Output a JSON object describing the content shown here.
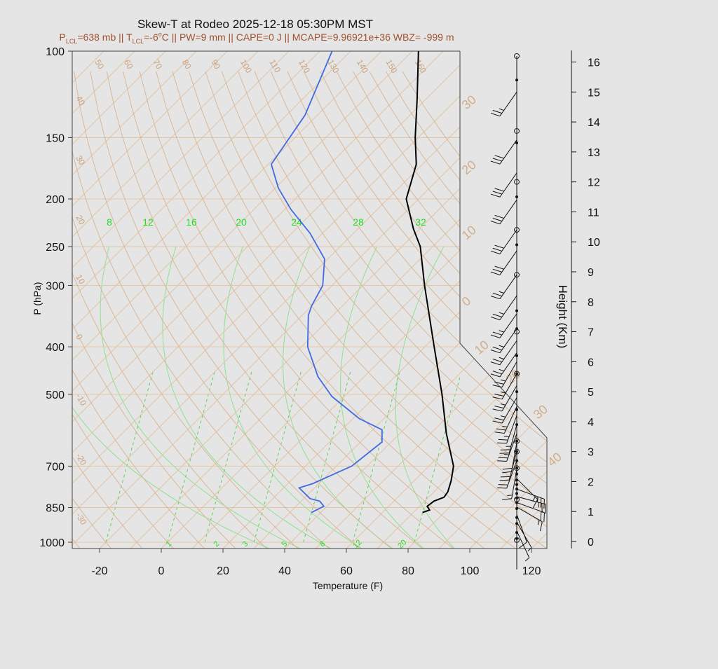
{
  "chart_data": {
    "type": "skew-t",
    "title": "Skew-T at Rodeo 2025-12-18 05:30PM MST",
    "subtitle": {
      "p_lcl_sym": "P",
      "p_lcl_sub": "LCL",
      "p_lcl_val": "=638 mb",
      "sep1": " || ",
      "t_lcl_sym": "T",
      "t_lcl_sub": "LCL",
      "t_lcl_val": "=-6",
      "deg": "o",
      "t_lcl_unit": "C",
      "rest": " || PW=9 mm || CAPE=0 J || MCAPE=9.96921e+36 WBZ= -999 m"
    },
    "xlabel": "Temperature (F)",
    "ylabel": "P (hPa)",
    "ylabel_right": "Height (Km)",
    "x_ticks": [
      "-20",
      "0",
      "20",
      "40",
      "60",
      "80",
      "100",
      "120"
    ],
    "x_tick_values": [
      -20,
      0,
      20,
      40,
      60,
      80,
      100,
      120
    ],
    "xlim": [
      -28,
      125
    ],
    "p_ticks": [
      "100",
      "150",
      "200",
      "250",
      "300",
      "400",
      "500",
      "700",
      "850",
      "1000"
    ],
    "p_tick_values": [
      100,
      150,
      200,
      250,
      300,
      400,
      500,
      700,
      850,
      1000
    ],
    "plim": [
      100,
      1030
    ],
    "isotherm_labels": [
      "50",
      "60",
      "70",
      "80",
      "90",
      "100",
      "110",
      "120",
      "130",
      "140",
      "150",
      "160"
    ],
    "isotherm_values": [
      50,
      60,
      70,
      80,
      90,
      100,
      110,
      120,
      130,
      140,
      150,
      160
    ],
    "isotherm_labels_left": [
      "40",
      "30",
      "20",
      "10",
      "0",
      "-10",
      "-20",
      "-30"
    ],
    "isotherm_values_left": [
      40,
      30,
      20,
      10,
      0,
      -10,
      -20,
      -30
    ],
    "wind_scale_labels": [
      "30",
      "20",
      "10",
      "0",
      "10",
      "20",
      "30",
      "40"
    ],
    "mixing_ratio_top_labels": [
      "8",
      "12",
      "16",
      "20",
      "24",
      "28",
      "32"
    ],
    "mixing_ratio_top_values": [
      8,
      12,
      16,
      20,
      24,
      28,
      32
    ],
    "mixing_ratio_bottom_labels": [
      "1",
      "2",
      "3",
      "5",
      "8",
      "12",
      "20"
    ],
    "mixing_ratio_bottom_values": [
      1,
      2,
      3,
      5,
      8,
      12,
      20
    ],
    "height_ticks": [
      "0",
      "1",
      "2",
      "3",
      "4",
      "5",
      "6",
      "7",
      "8",
      "9",
      "10",
      "11",
      "12",
      "13",
      "14",
      "15",
      "16"
    ],
    "height_values": [
      0,
      1,
      2,
      3,
      4,
      5,
      6,
      7,
      8,
      9,
      10,
      11,
      12,
      13,
      14,
      15,
      16
    ],
    "series": [
      {
        "name": "",
        "color": "#000000",
        "points": [
          {
            "p": 870,
            "t": 73
          },
          {
            "p": 860,
            "t": 74.5
          },
          {
            "p": 845,
            "t": 72.5
          },
          {
            "p": 825,
            "t": 73
          },
          {
            "p": 810,
            "t": 75
          },
          {
            "p": 790,
            "t": 74.5
          },
          {
            "p": 750,
            "t": 72
          },
          {
            "p": 700,
            "t": 68
          },
          {
            "p": 600,
            "t": 55
          },
          {
            "p": 500,
            "t": 41
          },
          {
            "p": 400,
            "t": 23
          },
          {
            "p": 300,
            "t": 0
          },
          {
            "p": 250,
            "t": -14
          },
          {
            "p": 230,
            "t": -22
          },
          {
            "p": 200,
            "t": -34
          },
          {
            "p": 170,
            "t": -42
          },
          {
            "p": 150,
            "t": -51
          },
          {
            "p": 125,
            "t": -63
          },
          {
            "p": 100,
            "t": -78
          }
        ]
      },
      {
        "name": "",
        "color": "#4169e1",
        "points": [
          {
            "p": 870,
            "t": 37
          },
          {
            "p": 845,
            "t": 39
          },
          {
            "p": 825,
            "t": 36
          },
          {
            "p": 815,
            "t": 32
          },
          {
            "p": 775,
            "t": 25
          },
          {
            "p": 760,
            "t": 28
          },
          {
            "p": 700,
            "t": 35
          },
          {
            "p": 625,
            "t": 37
          },
          {
            "p": 590,
            "t": 33
          },
          {
            "p": 560,
            "t": 22
          },
          {
            "p": 505,
            "t": 6
          },
          {
            "p": 460,
            "t": -5
          },
          {
            "p": 400,
            "t": -18
          },
          {
            "p": 345,
            "t": -28
          },
          {
            "p": 330,
            "t": -30
          },
          {
            "p": 300,
            "t": -33
          },
          {
            "p": 265,
            "t": -41
          },
          {
            "p": 235,
            "t": -54
          },
          {
            "p": 210,
            "t": -68
          },
          {
            "p": 190,
            "t": -79
          },
          {
            "p": 170,
            "t": -89
          },
          {
            "p": 135,
            "t": -94
          },
          {
            "p": 100,
            "t": -106
          }
        ]
      }
    ],
    "wind_profile": [
      {
        "z": 0.05,
        "spd": 3,
        "dir": 0
      },
      {
        "z": 0.35,
        "spd": 5,
        "dir": 25
      },
      {
        "z": 0.65,
        "spd": 8,
        "dir": 30
      },
      {
        "z": 0.9,
        "spd": 10,
        "dir": 20
      },
      {
        "z": 1.15,
        "spd": 15,
        "dir": 60
      },
      {
        "z": 1.3,
        "spd": 20,
        "dir": 70
      },
      {
        "z": 1.5,
        "spd": 25,
        "dir": 75
      },
      {
        "z": 1.75,
        "spd": 25,
        "dir": 70
      },
      {
        "z": 2.1,
        "spd": 15,
        "dir": 45
      },
      {
        "z": 2.4,
        "spd": 15,
        "dir": 350
      },
      {
        "z": 2.7,
        "spd": 20,
        "dir": 340
      },
      {
        "z": 3.0,
        "spd": 20,
        "dir": 345
      },
      {
        "z": 3.3,
        "spd": 20,
        "dir": 350
      },
      {
        "z": 3.6,
        "spd": 25,
        "dir": 340
      },
      {
        "z": 3.9,
        "spd": 25,
        "dir": 345
      },
      {
        "z": 4.2,
        "spd": 25,
        "dir": 340
      },
      {
        "z": 4.5,
        "spd": 25,
        "dir": 335
      },
      {
        "z": 4.8,
        "spd": 25,
        "dir": 330
      },
      {
        "z": 5.2,
        "spd": 25,
        "dir": 330
      },
      {
        "z": 5.6,
        "spd": 25,
        "dir": 330
      },
      {
        "z": 6.0,
        "spd": 25,
        "dir": 330
      },
      {
        "z": 6.3,
        "spd": 25,
        "dir": 325
      },
      {
        "z": 6.7,
        "spd": 25,
        "dir": 325
      },
      {
        "z": 7.1,
        "spd": 25,
        "dir": 325
      },
      {
        "z": 7.6,
        "spd": 25,
        "dir": 325
      },
      {
        "z": 8.2,
        "spd": 25,
        "dir": 325
      },
      {
        "z": 8.9,
        "spd": 25,
        "dir": 325
      },
      {
        "z": 9.7,
        "spd": 30,
        "dir": 325
      },
      {
        "z": 10.4,
        "spd": 30,
        "dir": 325
      },
      {
        "z": 11.4,
        "spd": 30,
        "dir": 325
      },
      {
        "z": 12.3,
        "spd": 30,
        "dir": 325
      },
      {
        "z": 13.4,
        "spd": 30,
        "dir": 325
      },
      {
        "z": 15.0,
        "spd": 25,
        "dir": 325
      }
    ],
    "wind_dots_km": [
      0.1,
      0.3,
      0.6,
      0.8,
      1.1,
      1.3,
      1.45,
      1.6,
      1.75,
      1.9,
      2.05,
      2.25,
      2.45,
      2.7,
      3.0,
      3.35,
      3.9,
      4.4,
      5.0,
      5.6,
      6.2,
      7.1,
      7.7,
      9.9,
      11.5,
      13.3,
      15.4
    ],
    "wind_circles_km": [
      0.05,
      1.4,
      2.45,
      3.0,
      3.35,
      5.6,
      7.0,
      8.9,
      10.4,
      12.0,
      13.7,
      16.2
    ]
  }
}
